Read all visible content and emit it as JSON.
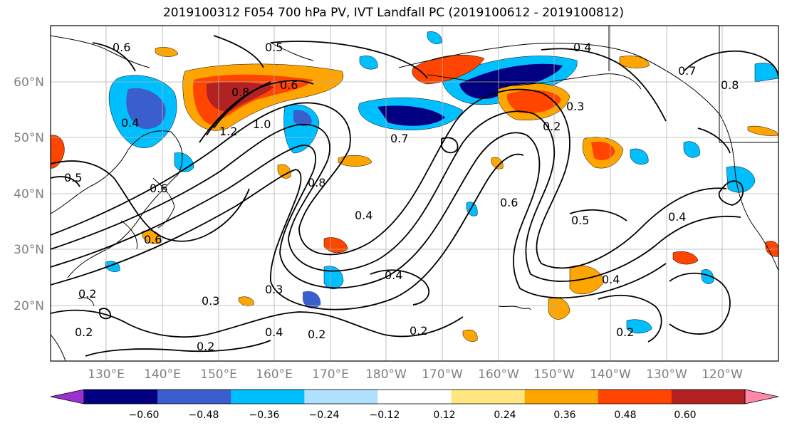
{
  "title": "2019100312 F054 700 hPa PV, IVT Landfall PC (2019100612 - 2019100812)",
  "colors": {
    "ocean_bg": "#ffffff",
    "grid": "#b0b0b0",
    "axis_label": "#808080",
    "contour": "#000000",
    "cbar_bins": [
      "#9b30d0",
      "#000080",
      "#3a5fcd",
      "#00bfff",
      "#b0e2ff",
      "#ffffff",
      "#ffe680",
      "#ffa500",
      "#ff4500",
      "#b22222",
      "#ff88aa"
    ]
  },
  "map": {
    "lat_labels": [
      "60°N",
      "50°N",
      "40°N",
      "30°N",
      "20°N"
    ],
    "lon_labels": [
      "130°E",
      "140°E",
      "150°E",
      "160°E",
      "170°E",
      "180°W",
      "170°W",
      "160°W",
      "150°W",
      "140°W",
      "130°W",
      "120°W"
    ],
    "contour_labels": [
      "0.6",
      "0.5",
      "0.8",
      "1.2",
      "1.0",
      "0.6",
      "0.4",
      "0.3",
      "0.2",
      "0.7",
      "0.8",
      "0.4",
      "0.6",
      "0.5",
      "0.4",
      "0.3",
      "0.2",
      "0.2",
      "0.2",
      "0.3",
      "0.4",
      "0.2",
      "0.2",
      "0.4",
      "0.2",
      "0.6",
      "0.6",
      "0.5",
      "0.8",
      "0.7",
      "0.4",
      "0.4"
    ]
  },
  "colorbar": {
    "ticks": [
      "−0.60",
      "−0.48",
      "−0.36",
      "−0.24",
      "−0.12",
      "0.12",
      "0.24",
      "0.36",
      "0.48",
      "0.60"
    ]
  }
}
